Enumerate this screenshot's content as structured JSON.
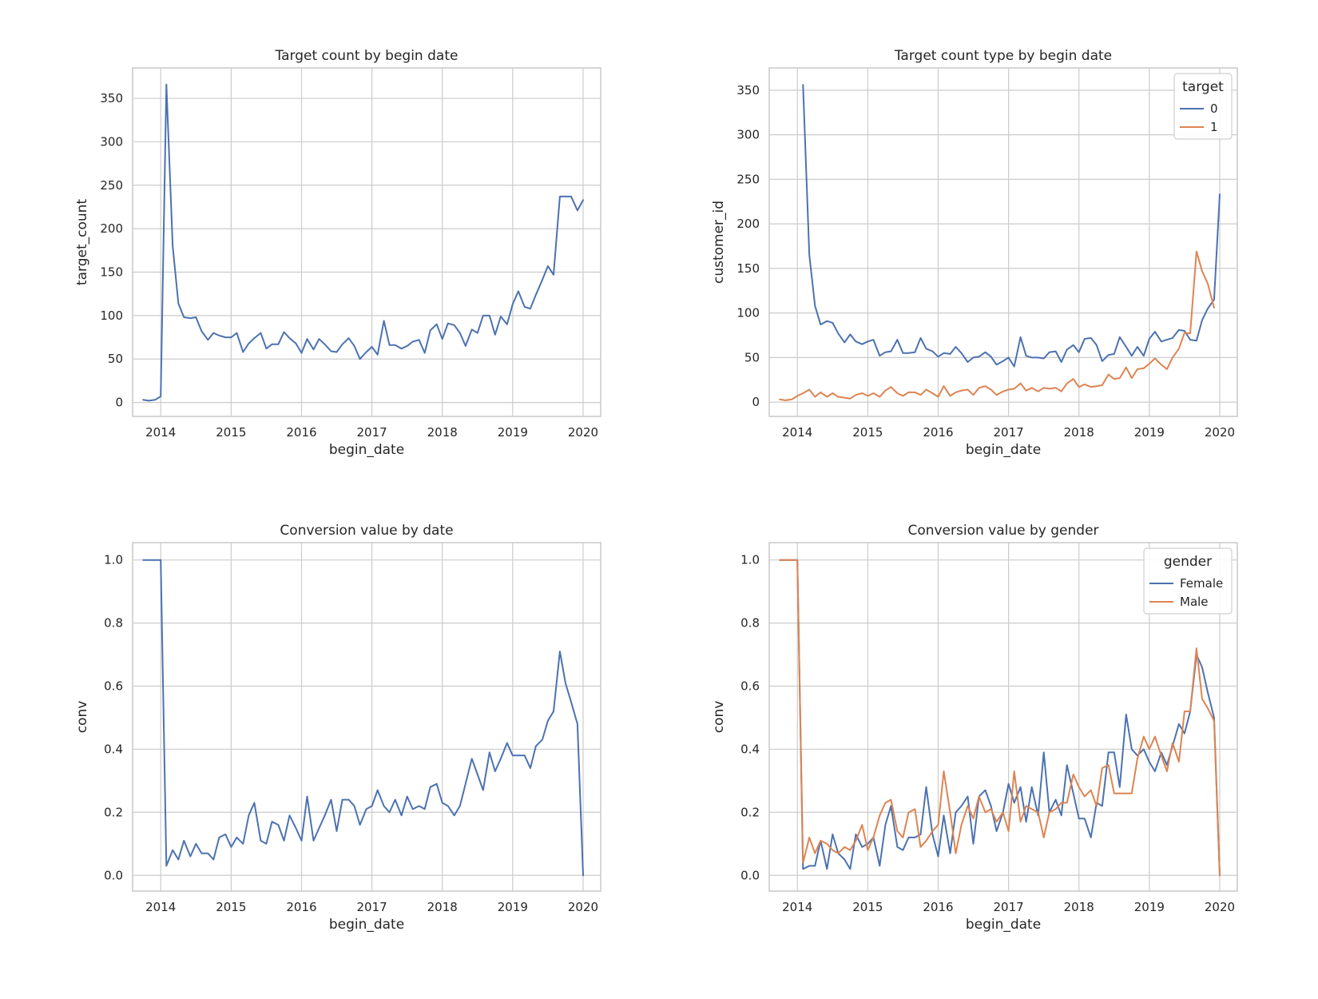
{
  "colors": {
    "series0": "#4c72b0",
    "series1": "#dd8452"
  },
  "chart_data": [
    {
      "type": "line",
      "title": "Target count by begin date",
      "xlabel": "begin_date",
      "ylabel": "target_count",
      "xlim": [
        2013.6,
        2020.25
      ],
      "ylim": [
        -16,
        385
      ],
      "xticks": [
        2014,
        2015,
        2016,
        2017,
        2018,
        2019,
        2020
      ],
      "yticks": [
        0,
        50,
        100,
        150,
        200,
        250,
        300,
        350
      ],
      "ytick_labels": [
        "0",
        "50",
        "100",
        "150",
        "200",
        "250",
        "300",
        "350"
      ],
      "grid": true,
      "legend": null,
      "x": [
        2013.75,
        2013.83,
        2013.92,
        2014.0,
        2014.08,
        2014.17,
        2014.25,
        2014.33,
        2014.42,
        2014.5,
        2014.58,
        2014.67,
        2014.75,
        2014.83,
        2014.92,
        2015.0,
        2015.08,
        2015.17,
        2015.25,
        2015.33,
        2015.42,
        2015.5,
        2015.58,
        2015.67,
        2015.75,
        2015.83,
        2015.92,
        2016.0,
        2016.08,
        2016.17,
        2016.25,
        2016.33,
        2016.42,
        2016.5,
        2016.58,
        2016.67,
        2016.75,
        2016.83,
        2016.92,
        2017.0,
        2017.08,
        2017.17,
        2017.25,
        2017.33,
        2017.42,
        2017.5,
        2017.58,
        2017.67,
        2017.75,
        2017.83,
        2017.92,
        2018.0,
        2018.08,
        2018.17,
        2018.25,
        2018.33,
        2018.42,
        2018.5,
        2018.58,
        2018.67,
        2018.75,
        2018.83,
        2018.92,
        2019.0,
        2019.08,
        2019.17,
        2019.25,
        2019.33,
        2019.42,
        2019.5,
        2019.58,
        2019.67,
        2019.75,
        2019.83,
        2019.92,
        2020.0
      ],
      "series": [
        {
          "values": [
            3,
            2,
            3,
            7,
            366,
            180,
            114,
            98,
            97,
            98,
            82,
            72,
            80,
            77,
            75,
            75,
            80,
            58,
            68,
            74,
            80,
            62,
            67,
            67,
            81,
            74,
            68,
            57,
            73,
            61,
            73,
            67,
            59,
            58,
            67,
            74,
            65,
            50,
            58,
            64,
            55,
            94,
            66,
            66,
            62,
            65,
            70,
            72,
            57,
            83,
            90,
            73,
            91,
            89,
            80,
            65,
            84,
            80,
            100,
            100,
            78,
            99,
            90,
            113,
            128,
            110,
            108,
            124,
            141,
            157,
            147,
            237,
            237,
            237,
            221,
            233
          ]
        }
      ]
    },
    {
      "type": "line",
      "title": "Target count type by begin date",
      "xlabel": "begin_date",
      "ylabel": "customer_id",
      "xlim": [
        2013.6,
        2020.25
      ],
      "ylim": [
        -16,
        375
      ],
      "xticks": [
        2014,
        2015,
        2016,
        2017,
        2018,
        2019,
        2020
      ],
      "yticks": [
        0,
        50,
        100,
        150,
        200,
        250,
        300,
        350
      ],
      "ytick_labels": [
        "0",
        "50",
        "100",
        "150",
        "200",
        "250",
        "300",
        "350"
      ],
      "grid": true,
      "legend": {
        "title": "target",
        "placement": "top-right"
      },
      "series": [
        {
          "name": "0",
          "x": [
            2014.08,
            2014.17,
            2014.25,
            2014.33,
            2014.42,
            2014.5,
            2014.58,
            2014.67,
            2014.75,
            2014.83,
            2014.92,
            2015.0,
            2015.08,
            2015.17,
            2015.25,
            2015.33,
            2015.42,
            2015.5,
            2015.58,
            2015.67,
            2015.75,
            2015.83,
            2015.92,
            2016.0,
            2016.08,
            2016.17,
            2016.25,
            2016.33,
            2016.42,
            2016.5,
            2016.58,
            2016.67,
            2016.75,
            2016.83,
            2016.92,
            2017.0,
            2017.08,
            2017.17,
            2017.25,
            2017.33,
            2017.42,
            2017.5,
            2017.58,
            2017.67,
            2017.75,
            2017.83,
            2017.92,
            2018.0,
            2018.08,
            2018.17,
            2018.25,
            2018.33,
            2018.42,
            2018.5,
            2018.58,
            2018.67,
            2018.75,
            2018.83,
            2018.92,
            2019.0,
            2019.08,
            2019.17,
            2019.25,
            2019.33,
            2019.42,
            2019.5,
            2019.58,
            2019.67,
            2019.75,
            2019.83,
            2019.92,
            2020.0
          ],
          "values": [
            356,
            165,
            108,
            87,
            91,
            89,
            77,
            67,
            76,
            68,
            65,
            68,
            70,
            52,
            56,
            57,
            70,
            55,
            55,
            56,
            72,
            60,
            57,
            51,
            55,
            54,
            62,
            55,
            45,
            50,
            51,
            56,
            51,
            42,
            46,
            50,
            40,
            73,
            52,
            50,
            50,
            49,
            56,
            57,
            45,
            59,
            64,
            56,
            71,
            72,
            64,
            46,
            53,
            54,
            73,
            62,
            52,
            62,
            52,
            71,
            79,
            68,
            70,
            72,
            81,
            80,
            70,
            69,
            92,
            105,
            115,
            233
          ]
        },
        {
          "name": "1",
          "x": [
            2013.75,
            2013.83,
            2013.92,
            2014.0,
            2014.08,
            2014.17,
            2014.25,
            2014.33,
            2014.42,
            2014.5,
            2014.58,
            2014.67,
            2014.75,
            2014.83,
            2014.92,
            2015.0,
            2015.08,
            2015.17,
            2015.25,
            2015.33,
            2015.42,
            2015.5,
            2015.58,
            2015.67,
            2015.75,
            2015.83,
            2015.92,
            2016.0,
            2016.08,
            2016.17,
            2016.25,
            2016.33,
            2016.42,
            2016.5,
            2016.58,
            2016.67,
            2016.75,
            2016.83,
            2016.92,
            2017.0,
            2017.08,
            2017.17,
            2017.25,
            2017.33,
            2017.42,
            2017.5,
            2017.58,
            2017.67,
            2017.75,
            2017.83,
            2017.92,
            2018.0,
            2018.08,
            2018.17,
            2018.25,
            2018.33,
            2018.42,
            2018.5,
            2018.58,
            2018.67,
            2018.75,
            2018.83,
            2018.92,
            2019.0,
            2019.08,
            2019.17,
            2019.25,
            2019.33,
            2019.42,
            2019.5,
            2019.58,
            2019.67,
            2019.75,
            2019.83,
            2019.92
          ],
          "values": [
            3,
            2,
            3,
            7,
            10,
            14,
            6,
            11,
            6,
            10,
            6,
            5,
            4,
            8,
            10,
            7,
            10,
            6,
            13,
            17,
            10,
            7,
            11,
            11,
            8,
            14,
            10,
            6,
            18,
            7,
            11,
            13,
            14,
            8,
            16,
            18,
            14,
            8,
            12,
            14,
            15,
            21,
            13,
            16,
            12,
            16,
            15,
            16,
            12,
            21,
            26,
            17,
            20,
            17,
            18,
            19,
            31,
            26,
            27,
            39,
            27,
            37,
            38,
            43,
            49,
            42,
            37,
            50,
            60,
            78,
            77,
            169,
            147,
            133,
            106
          ]
        }
      ]
    },
    {
      "type": "line",
      "title": "Conversion value by date",
      "xlabel": "begin_date",
      "ylabel": "conv",
      "xlim": [
        2013.6,
        2020.25
      ],
      "ylim": [
        -0.05,
        1.055
      ],
      "xticks": [
        2014,
        2015,
        2016,
        2017,
        2018,
        2019,
        2020
      ],
      "yticks": [
        0.0,
        0.2,
        0.4,
        0.6,
        0.8,
        1.0
      ],
      "ytick_labels": [
        "0.0",
        "0.2",
        "0.4",
        "0.6",
        "0.8",
        "1.0"
      ],
      "grid": true,
      "legend": null,
      "x": [
        2013.75,
        2013.83,
        2013.92,
        2014.0,
        2014.08,
        2014.17,
        2014.25,
        2014.33,
        2014.42,
        2014.5,
        2014.58,
        2014.67,
        2014.75,
        2014.83,
        2014.92,
        2015.0,
        2015.08,
        2015.17,
        2015.25,
        2015.33,
        2015.42,
        2015.5,
        2015.58,
        2015.67,
        2015.75,
        2015.83,
        2015.92,
        2016.0,
        2016.08,
        2016.17,
        2016.25,
        2016.33,
        2016.42,
        2016.5,
        2016.58,
        2016.67,
        2016.75,
        2016.83,
        2016.92,
        2017.0,
        2017.08,
        2017.17,
        2017.25,
        2017.33,
        2017.42,
        2017.5,
        2017.58,
        2017.67,
        2017.75,
        2017.83,
        2017.92,
        2018.0,
        2018.08,
        2018.17,
        2018.25,
        2018.33,
        2018.42,
        2018.5,
        2018.58,
        2018.67,
        2018.75,
        2018.83,
        2018.92,
        2019.0,
        2019.08,
        2019.17,
        2019.25,
        2019.33,
        2019.42,
        2019.5,
        2019.58,
        2019.67,
        2019.75,
        2019.83,
        2019.92,
        2020.0
      ],
      "series": [
        {
          "values": [
            1.0,
            1.0,
            1.0,
            1.0,
            0.03,
            0.08,
            0.05,
            0.11,
            0.06,
            0.1,
            0.07,
            0.07,
            0.05,
            0.12,
            0.13,
            0.09,
            0.12,
            0.1,
            0.19,
            0.23,
            0.11,
            0.1,
            0.17,
            0.16,
            0.11,
            0.19,
            0.15,
            0.11,
            0.25,
            0.11,
            0.15,
            0.19,
            0.24,
            0.14,
            0.24,
            0.24,
            0.22,
            0.16,
            0.21,
            0.22,
            0.27,
            0.22,
            0.2,
            0.24,
            0.19,
            0.25,
            0.21,
            0.22,
            0.21,
            0.28,
            0.29,
            0.23,
            0.22,
            0.19,
            0.22,
            0.29,
            0.37,
            0.32,
            0.27,
            0.39,
            0.33,
            0.37,
            0.42,
            0.38,
            0.38,
            0.38,
            0.34,
            0.41,
            0.43,
            0.49,
            0.52,
            0.71,
            0.61,
            0.55,
            0.48,
            0.0
          ]
        }
      ]
    },
    {
      "type": "line",
      "title": "Conversion value by gender",
      "xlabel": "begin_date",
      "ylabel": "conv",
      "xlim": [
        2013.6,
        2020.25
      ],
      "ylim": [
        -0.05,
        1.055
      ],
      "xticks": [
        2014,
        2015,
        2016,
        2017,
        2018,
        2019,
        2020
      ],
      "yticks": [
        0.0,
        0.2,
        0.4,
        0.6,
        0.8,
        1.0
      ],
      "ytick_labels": [
        "0.0",
        "0.2",
        "0.4",
        "0.6",
        "0.8",
        "1.0"
      ],
      "grid": true,
      "legend": {
        "title": "gender",
        "placement": "top-right"
      },
      "x": [
        2013.75,
        2013.83,
        2013.92,
        2014.0,
        2014.08,
        2014.17,
        2014.25,
        2014.33,
        2014.42,
        2014.5,
        2014.58,
        2014.67,
        2014.75,
        2014.83,
        2014.92,
        2015.0,
        2015.08,
        2015.17,
        2015.25,
        2015.33,
        2015.42,
        2015.5,
        2015.58,
        2015.67,
        2015.75,
        2015.83,
        2015.92,
        2016.0,
        2016.08,
        2016.17,
        2016.25,
        2016.33,
        2016.42,
        2016.5,
        2016.58,
        2016.67,
        2016.75,
        2016.83,
        2016.92,
        2017.0,
        2017.08,
        2017.17,
        2017.25,
        2017.33,
        2017.42,
        2017.5,
        2017.58,
        2017.67,
        2017.75,
        2017.83,
        2017.92,
        2018.0,
        2018.08,
        2018.17,
        2018.25,
        2018.33,
        2018.42,
        2018.5,
        2018.58,
        2018.67,
        2018.75,
        2018.83,
        2018.92,
        2019.0,
        2019.08,
        2019.17,
        2019.25,
        2019.33,
        2019.42,
        2019.5,
        2019.58,
        2019.67,
        2019.75,
        2019.83,
        2019.92,
        2020.0
      ],
      "series": [
        {
          "name": "Female",
          "values": [
            1.0,
            1.0,
            1.0,
            1.0,
            0.02,
            0.03,
            0.03,
            0.11,
            0.02,
            0.13,
            0.07,
            0.05,
            0.02,
            0.13,
            0.09,
            0.1,
            0.12,
            0.03,
            0.16,
            0.22,
            0.09,
            0.08,
            0.12,
            0.12,
            0.13,
            0.28,
            0.13,
            0.06,
            0.19,
            0.07,
            0.2,
            0.22,
            0.25,
            0.1,
            0.25,
            0.27,
            0.22,
            0.14,
            0.2,
            0.29,
            0.23,
            0.28,
            0.17,
            0.28,
            0.19,
            0.39,
            0.2,
            0.24,
            0.19,
            0.35,
            0.26,
            0.18,
            0.18,
            0.12,
            0.23,
            0.22,
            0.39,
            0.39,
            0.28,
            0.51,
            0.4,
            0.38,
            0.4,
            0.36,
            0.33,
            0.39,
            0.35,
            0.41,
            0.48,
            0.45,
            0.52,
            0.7,
            0.66,
            0.58,
            0.5,
            0.0
          ]
        },
        {
          "name": "Male",
          "values": [
            1.0,
            1.0,
            1.0,
            1.0,
            0.04,
            0.12,
            0.07,
            0.11,
            0.1,
            0.08,
            0.07,
            0.09,
            0.08,
            0.11,
            0.16,
            0.08,
            0.12,
            0.19,
            0.23,
            0.24,
            0.14,
            0.12,
            0.2,
            0.21,
            0.09,
            0.11,
            0.14,
            0.16,
            0.33,
            0.2,
            0.07,
            0.16,
            0.22,
            0.18,
            0.25,
            0.2,
            0.21,
            0.17,
            0.2,
            0.14,
            0.33,
            0.17,
            0.22,
            0.21,
            0.2,
            0.12,
            0.2,
            0.21,
            0.23,
            0.23,
            0.32,
            0.28,
            0.25,
            0.27,
            0.22,
            0.34,
            0.35,
            0.26,
            0.26,
            0.26,
            0.26,
            0.37,
            0.44,
            0.4,
            0.44,
            0.38,
            0.33,
            0.42,
            0.36,
            0.52,
            0.52,
            0.72,
            0.56,
            0.53,
            0.49,
            0.0
          ]
        }
      ]
    }
  ]
}
